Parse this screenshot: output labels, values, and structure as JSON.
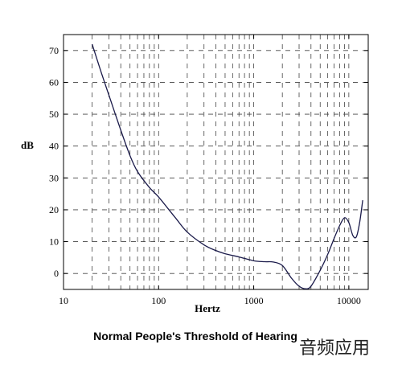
{
  "chart_data": {
    "type": "line",
    "title": "Normal People's Threshold of Hearing",
    "xlabel": "Hertz",
    "ylabel": "dB",
    "xscale": "log",
    "xlim": [
      10,
      16000
    ],
    "ylim": [
      -5,
      75
    ],
    "xticks": [
      10,
      100,
      1000,
      10000
    ],
    "xtick_labels": [
      "10",
      "100",
      "1000",
      "10000"
    ],
    "yticks": [
      0,
      10,
      20,
      30,
      40,
      50,
      60,
      70
    ],
    "ytick_labels": [
      "0",
      "10",
      "20",
      "30",
      "40",
      "50",
      "60",
      "70"
    ],
    "grid": true,
    "series": [
      {
        "color": "#1a1a4a",
        "x": [
          20,
          25,
          30,
          40,
          50,
          60,
          80,
          100,
          150,
          200,
          300,
          400,
          500,
          700,
          1000,
          1300,
          1600,
          2000,
          2500,
          3000,
          3500,
          4000,
          5000,
          6000,
          7000,
          8000,
          9000,
          10000,
          11000,
          12000,
          13000,
          14000
        ],
        "y": [
          72,
          63,
          56,
          45,
          37,
          32,
          27,
          24,
          17.5,
          13,
          9,
          7.2,
          6.2,
          5.2,
          4,
          3.7,
          3.6,
          2.5,
          -1.5,
          -4,
          -4.8,
          -4,
          1,
          6,
          11,
          15,
          17.5,
          16,
          12,
          11.5,
          16,
          23
        ]
      }
    ]
  },
  "watermark": "音频应用"
}
